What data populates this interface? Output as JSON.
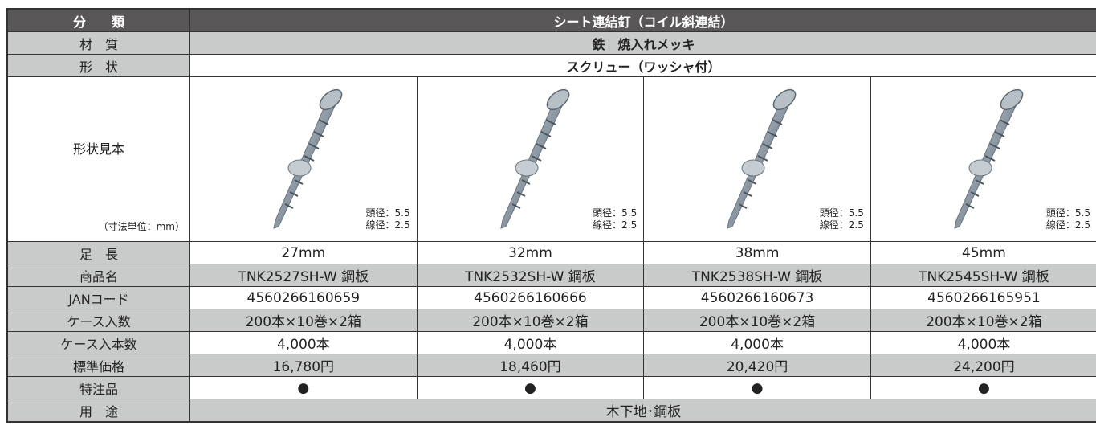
{
  "table": {
    "header": {
      "label": "分　　類",
      "value": "シート連結釘（コイル斜連結）"
    },
    "spans": [
      {
        "label": "材　質",
        "value": "鉄　焼入れメッキ"
      },
      {
        "label": "形　状",
        "value": "スクリュー（ワッシャ付）"
      }
    ],
    "sample": {
      "label": "形状見本",
      "note": "（寸法単位：mm）",
      "cells": [
        {
          "head": "頭径：5.5",
          "wire": "線径：2.5"
        },
        {
          "head": "頭径：5.5",
          "wire": "線径：2.5"
        },
        {
          "head": "頭径：5.5",
          "wire": "線径：2.5"
        },
        {
          "head": "頭径：5.5",
          "wire": "線径：2.5"
        }
      ]
    },
    "rows": [
      {
        "label": "足　長",
        "values": [
          "27mm",
          "32mm",
          "38mm",
          "45mm"
        ]
      },
      {
        "label": "商品名",
        "values": [
          "TNK2527SH-W 鋼板",
          "TNK2532SH-W 鋼板",
          "TNK2538SH-W 鋼板",
          "TNK2545SH-W 鋼板"
        ]
      },
      {
        "label": "JANコード",
        "values": [
          "4560266160659",
          "4560266160666",
          "4560266160673",
          "4560266165951"
        ]
      },
      {
        "label": "ケース入数",
        "values": [
          "200本×10巻×2箱",
          "200本×10巻×2箱",
          "200本×10巻×2箱",
          "200本×10巻×2箱"
        ]
      },
      {
        "label": "ケース入本数",
        "values": [
          "4,000本",
          "4,000本",
          "4,000本",
          "4,000本"
        ]
      },
      {
        "label": "標準価格",
        "values": [
          "16,780円",
          "18,460円",
          "20,420円",
          "24,200円"
        ]
      },
      {
        "label": "特注品",
        "values": [
          "●",
          "●",
          "●",
          "●"
        ]
      }
    ],
    "footer": {
      "label": "用　途",
      "value": "木下地･鋼板"
    }
  }
}
